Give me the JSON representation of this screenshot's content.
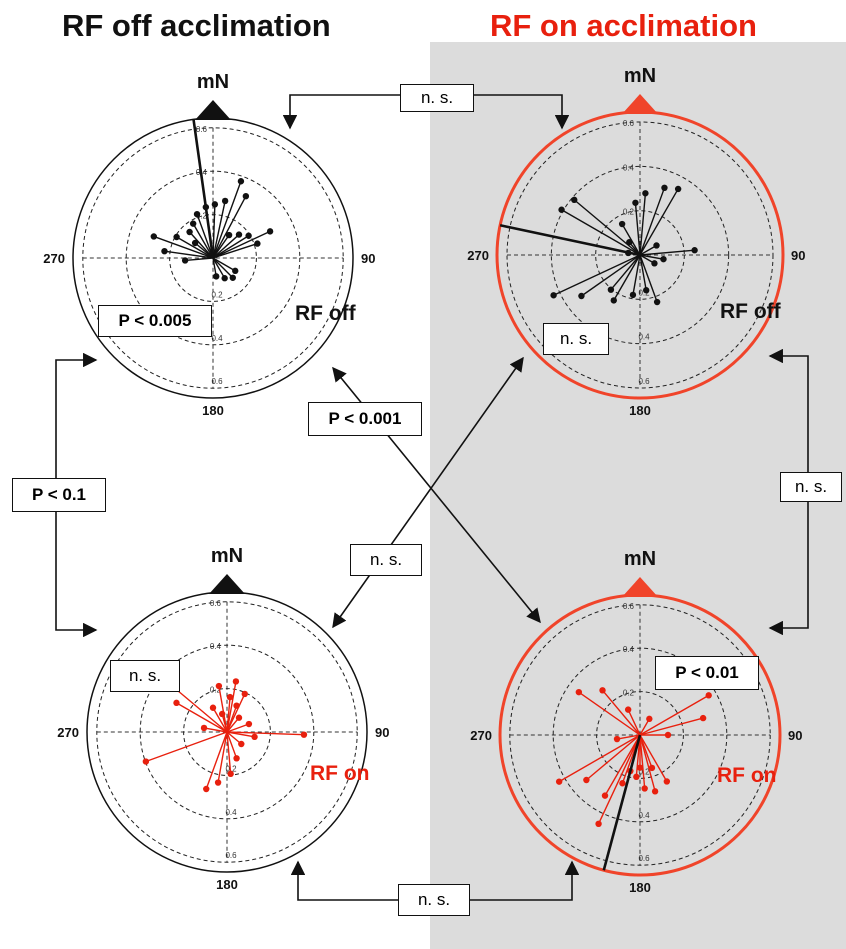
{
  "header": {
    "left_title": "RF off acclimation",
    "right_title": "RF on acclimation",
    "left_title_color": "#111111",
    "right_title_color": "#e8200e"
  },
  "colors": {
    "black": "#111111",
    "red": "#e8200e",
    "ring_red": "#f0442a",
    "panel_gray": "#dcdcdc"
  },
  "tick_labels": [
    "0.2",
    "0.4",
    "0.6"
  ],
  "compass": {
    "north": "mN",
    "east": "90",
    "south": "180",
    "west": "270"
  },
  "comparisons": {
    "top": "n. s.",
    "left": "P < 0.1",
    "right": "n. s.",
    "bottom": "n. s.",
    "diagonal_main": "P < 0.001",
    "diagonal_anti": "n. s."
  },
  "chart_data": [
    {
      "type": "polar-scatter",
      "id": "off-off",
      "group": "RF off acclimation",
      "test_condition": "RF off",
      "condition_color": "#111111",
      "rlim": [
        0,
        0.6
      ],
      "stat": "P < 0.005",
      "marker_color": "#111111",
      "mean_vector": {
        "angle": 352,
        "length": 0.6
      },
      "points": [
        {
          "angle": 20,
          "r": 0.35
        },
        {
          "angle": 28,
          "r": 0.3
        },
        {
          "angle": 65,
          "r": 0.27
        },
        {
          "angle": 72,
          "r": 0.2
        },
        {
          "angle": 58,
          "r": 0.18
        },
        {
          "angle": 48,
          "r": 0.15
        },
        {
          "angle": 35,
          "r": 0.12
        },
        {
          "angle": 12,
          "r": 0.25
        },
        {
          "angle": 2,
          "r": 0.23
        },
        {
          "angle": 352,
          "r": 0.22
        },
        {
          "angle": 340,
          "r": 0.2
        },
        {
          "angle": 330,
          "r": 0.17
        },
        {
          "angle": 318,
          "r": 0.15
        },
        {
          "angle": 300,
          "r": 0.18
        },
        {
          "angle": 290,
          "r": 0.27
        },
        {
          "angle": 278,
          "r": 0.21
        },
        {
          "angle": 265,
          "r": 0.12
        },
        {
          "angle": 150,
          "r": 0.1
        },
        {
          "angle": 170,
          "r": 0.08
        },
        {
          "angle": 135,
          "r": 0.12
        },
        {
          "angle": 120,
          "r": 0.11
        },
        {
          "angle": 310,
          "r": 0.1
        }
      ]
    },
    {
      "type": "polar-scatter",
      "id": "on-off",
      "group": "RF on acclimation",
      "test_condition": "RF off",
      "condition_color": "#111111",
      "rlim": [
        0,
        0.6
      ],
      "stat": "n. s.",
      "marker_color": "#111111",
      "mean_vector": {
        "angle": 282,
        "length": 0.6
      },
      "points": [
        {
          "angle": 20,
          "r": 0.3
        },
        {
          "angle": 30,
          "r": 0.32
        },
        {
          "angle": 5,
          "r": 0.26
        },
        {
          "angle": 355,
          "r": 0.22
        },
        {
          "angle": 85,
          "r": 0.23
        },
        {
          "angle": 100,
          "r": 0.1
        },
        {
          "angle": 120,
          "r": 0.07
        },
        {
          "angle": 160,
          "r": 0.21
        },
        {
          "angle": 170,
          "r": 0.15
        },
        {
          "angle": 190,
          "r": 0.17
        },
        {
          "angle": 210,
          "r": 0.22
        },
        {
          "angle": 220,
          "r": 0.19
        },
        {
          "angle": 235,
          "r": 0.3
        },
        {
          "angle": 245,
          "r": 0.4
        },
        {
          "angle": 300,
          "r": 0.38
        },
        {
          "angle": 310,
          "r": 0.36
        },
        {
          "angle": 330,
          "r": 0.15
        },
        {
          "angle": 320,
          "r": 0.07
        },
        {
          "angle": 280,
          "r": 0.05
        },
        {
          "angle": 60,
          "r": 0.08
        }
      ]
    },
    {
      "type": "polar-scatter",
      "id": "off-on",
      "group": "RF off acclimation",
      "test_condition": "RF on",
      "condition_color": "#e8200e",
      "rlim": [
        0,
        0.6
      ],
      "stat": "n. s.",
      "marker_color": "#e8200e",
      "points": [
        {
          "angle": 10,
          "r": 0.22
        },
        {
          "angle": 25,
          "r": 0.18
        },
        {
          "angle": 5,
          "r": 0.15
        },
        {
          "angle": 350,
          "r": 0.2
        },
        {
          "angle": 330,
          "r": 0.12
        },
        {
          "angle": 310,
          "r": 0.33
        },
        {
          "angle": 300,
          "r": 0.25
        },
        {
          "angle": 280,
          "r": 0.1
        },
        {
          "angle": 250,
          "r": 0.37
        },
        {
          "angle": 200,
          "r": 0.26
        },
        {
          "angle": 190,
          "r": 0.22
        },
        {
          "angle": 175,
          "r": 0.18
        },
        {
          "angle": 160,
          "r": 0.12
        },
        {
          "angle": 130,
          "r": 0.08
        },
        {
          "angle": 100,
          "r": 0.12
        },
        {
          "angle": 92,
          "r": 0.33
        },
        {
          "angle": 70,
          "r": 0.1
        },
        {
          "angle": 40,
          "r": 0.08
        },
        {
          "angle": 20,
          "r": 0.12
        },
        {
          "angle": 345,
          "r": 0.08
        }
      ]
    },
    {
      "type": "polar-scatter",
      "id": "on-on",
      "group": "RF on acclimation",
      "test_condition": "RF on",
      "condition_color": "#e8200e",
      "rlim": [
        0,
        0.6
      ],
      "stat": "P < 0.01",
      "marker_color": "#e8200e",
      "mean_vector": {
        "angle": 195,
        "length": 0.6
      },
      "points": [
        {
          "angle": 305,
          "r": 0.32
        },
        {
          "angle": 320,
          "r": 0.25
        },
        {
          "angle": 335,
          "r": 0.12
        },
        {
          "angle": 60,
          "r": 0.34
        },
        {
          "angle": 75,
          "r": 0.28
        },
        {
          "angle": 90,
          "r": 0.12
        },
        {
          "angle": 150,
          "r": 0.23
        },
        {
          "angle": 160,
          "r": 0.15
        },
        {
          "angle": 165,
          "r": 0.25
        },
        {
          "angle": 175,
          "r": 0.23
        },
        {
          "angle": 185,
          "r": 0.18
        },
        {
          "angle": 200,
          "r": 0.22
        },
        {
          "angle": 210,
          "r": 0.3
        },
        {
          "angle": 230,
          "r": 0.3
        },
        {
          "angle": 240,
          "r": 0.4
        },
        {
          "angle": 205,
          "r": 0.42
        },
        {
          "angle": 195,
          "r": 0.16
        },
        {
          "angle": 180,
          "r": 0.14
        },
        {
          "angle": 30,
          "r": 0.08
        },
        {
          "angle": 260,
          "r": 0.1
        }
      ]
    }
  ]
}
